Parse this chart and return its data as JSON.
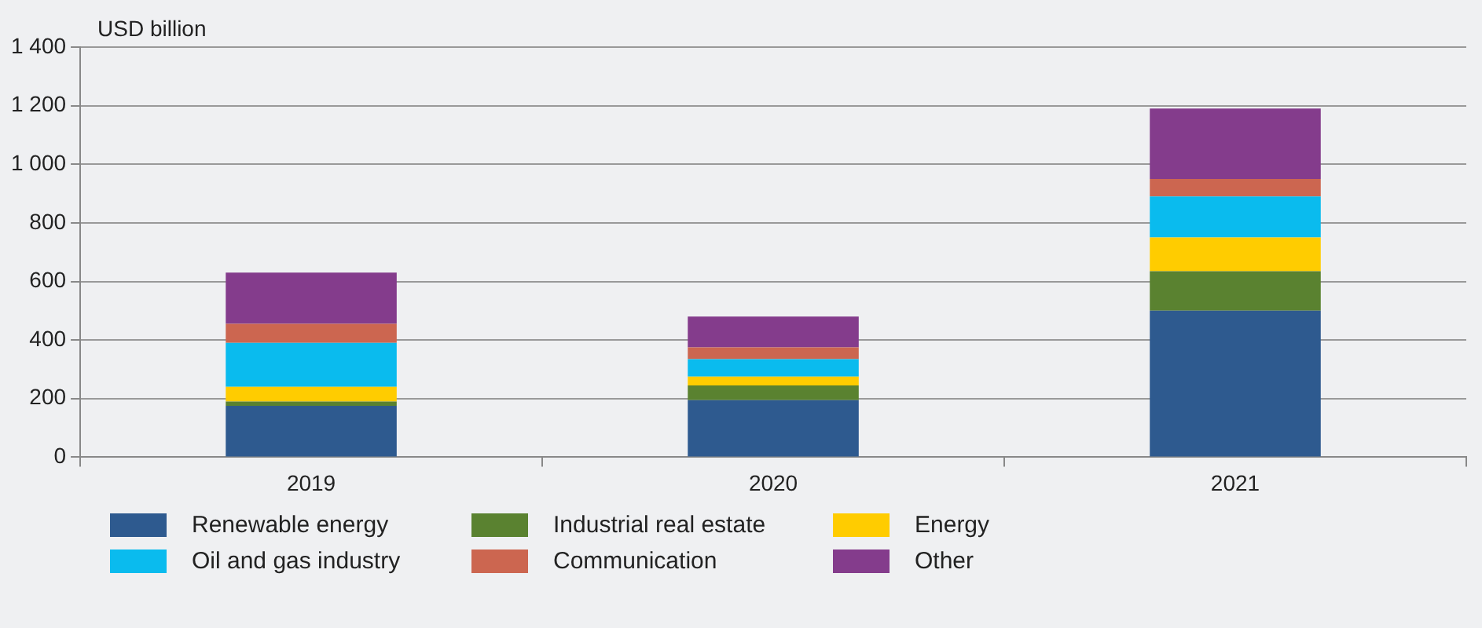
{
  "chart_data": {
    "type": "bar",
    "stacked": true,
    "ylabel": "USD billion",
    "categories": [
      "2019",
      "2020",
      "2021"
    ],
    "series": [
      {
        "name": "Renewable energy",
        "color": "#2e5a8f",
        "values": [
          175,
          195,
          500
        ]
      },
      {
        "name": "Industrial real estate",
        "color": "#5a8230",
        "values": [
          15,
          50,
          135
        ]
      },
      {
        "name": "Energy",
        "color": "#ffcc00",
        "values": [
          50,
          30,
          115
        ]
      },
      {
        "name": "Oil and gas industry",
        "color": "#0abbee",
        "values": [
          150,
          60,
          140
        ]
      },
      {
        "name": "Communication",
        "color": "#cc6650",
        "values": [
          65,
          40,
          60
        ]
      },
      {
        "name": "Other",
        "color": "#843c8c",
        "values": [
          175,
          105,
          240
        ]
      }
    ],
    "ylim": [
      0,
      1400
    ],
    "yticks": [
      0,
      200,
      400,
      600,
      800,
      {
        "value": 1000,
        "label": "1 000"
      },
      {
        "value": 1200,
        "label": "1 200"
      },
      {
        "value": 1400,
        "label": "1 400"
      }
    ],
    "grid": "y",
    "legend": "bottom"
  }
}
